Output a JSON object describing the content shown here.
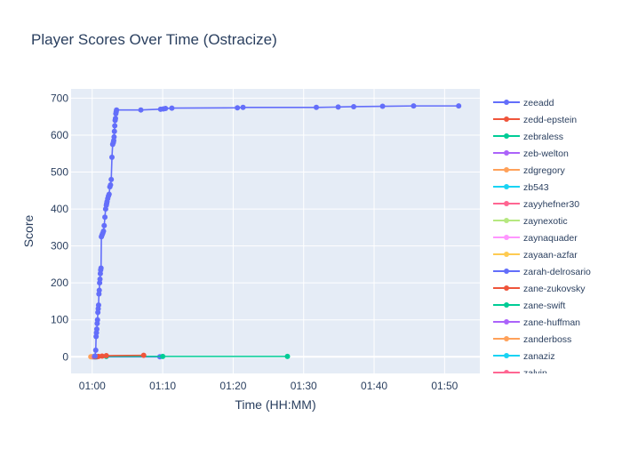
{
  "chart_data": {
    "type": "line",
    "title": "Player Scores Over Time (Ostracize)",
    "xlabel": "Time (HH:MM)",
    "ylabel": "Score",
    "x_axis_unit": "minutes after 01:00",
    "xlim": [
      -3,
      55
    ],
    "ylim": [
      -45,
      725
    ],
    "x_ticks": [
      {
        "value": 0,
        "label": "01:00"
      },
      {
        "value": 10,
        "label": "01:10"
      },
      {
        "value": 20,
        "label": "01:20"
      },
      {
        "value": 30,
        "label": "01:30"
      },
      {
        "value": 40,
        "label": "01:40"
      },
      {
        "value": 50,
        "label": "01:50"
      }
    ],
    "y_ticks": [
      0,
      100,
      200,
      300,
      400,
      500,
      600,
      700
    ],
    "grid": true,
    "legend_position": "right",
    "series": [
      {
        "name": "zeeadd",
        "color": "#636efa",
        "x": [
          0.4,
          0.5,
          0.55,
          0.6,
          0.65,
          0.7,
          0.75,
          0.8,
          0.85,
          0.9,
          0.95,
          1.0,
          1.05,
          1.1,
          1.15,
          1.2,
          1.25,
          1.3,
          1.4,
          1.5,
          1.6,
          1.7,
          1.8,
          1.9,
          2.0,
          2.05,
          2.1,
          2.2,
          2.3,
          2.4,
          2.5,
          2.6,
          2.7,
          2.8,
          2.9,
          3.0,
          3.05,
          3.1,
          3.15,
          3.2,
          3.25,
          3.3,
          3.35,
          3.4,
          3.45,
          6.9,
          9.7,
          10.1,
          10.4,
          11.3,
          20.6,
          21.4,
          31.8,
          34.9,
          37.1,
          41.2,
          45.6,
          52.0
        ],
        "y": [
          2,
          18,
          55,
          65,
          75,
          90,
          100,
          120,
          130,
          140,
          170,
          180,
          200,
          210,
          225,
          235,
          240,
          325,
          330,
          335,
          340,
          355,
          378,
          400,
          410,
          415,
          420,
          428,
          435,
          440,
          460,
          465,
          480,
          540,
          575,
          580,
          585,
          595,
          610,
          625,
          640,
          645,
          658,
          663,
          668,
          668,
          670,
          671,
          672,
          673,
          674,
          675,
          675,
          676,
          677,
          678,
          679,
          679
        ]
      },
      {
        "name": "zedd-epstein",
        "color": "#ef553b",
        "x": [
          0.4,
          0.9,
          1.4,
          2.0,
          7.3
        ],
        "y": [
          0,
          1,
          2,
          3,
          4
        ]
      },
      {
        "name": "zebraless",
        "color": "#00cc96",
        "x": [
          0.5,
          2.0,
          10.0,
          27.7
        ],
        "y": [
          0,
          1,
          1,
          1
        ]
      },
      {
        "name": "zeb-welton",
        "color": "#ab63fa",
        "x": [
          0.3
        ],
        "y": [
          0
        ]
      },
      {
        "name": "zdgregory",
        "color": "#ffa15a",
        "x": [
          -0.2
        ],
        "y": [
          0
        ]
      },
      {
        "name": "zb543",
        "color": "#19d3f3",
        "x": [
          0.2
        ],
        "y": [
          0
        ]
      },
      {
        "name": "zayyhefner30",
        "color": "#ff6692",
        "x": [
          0.1
        ],
        "y": [
          0
        ]
      },
      {
        "name": "zaynexotic",
        "color": "#b6e880",
        "x": [
          0.0
        ],
        "y": [
          0
        ]
      },
      {
        "name": "zaynaquader",
        "color": "#ff97ff",
        "x": [
          0.15
        ],
        "y": [
          0
        ]
      },
      {
        "name": "zayaan-azfar",
        "color": "#fecb52",
        "x": [
          -0.1
        ],
        "y": [
          0
        ]
      },
      {
        "name": "zarah-delrosario",
        "color": "#636efa",
        "x": [
          0.6,
          9.6
        ],
        "y": [
          0,
          0
        ]
      },
      {
        "name": "zane-zukovsky",
        "color": "#ef553b",
        "x": [
          0.7
        ],
        "y": [
          0
        ]
      },
      {
        "name": "zane-swift",
        "color": "#00cc96",
        "x": [
          0.35
        ],
        "y": [
          0
        ]
      },
      {
        "name": "zane-huffman",
        "color": "#ab63fa",
        "x": [
          0.25
        ],
        "y": [
          0
        ]
      },
      {
        "name": "zanderboss",
        "color": "#ffa15a",
        "x": [
          0.05
        ],
        "y": [
          0
        ]
      },
      {
        "name": "zanaziz",
        "color": "#19d3f3",
        "x": [
          0.45
        ],
        "y": [
          0
        ]
      },
      {
        "name": "zalvin",
        "color": "#ff6692",
        "x": [
          0.55
        ],
        "y": [
          0
        ]
      }
    ]
  }
}
